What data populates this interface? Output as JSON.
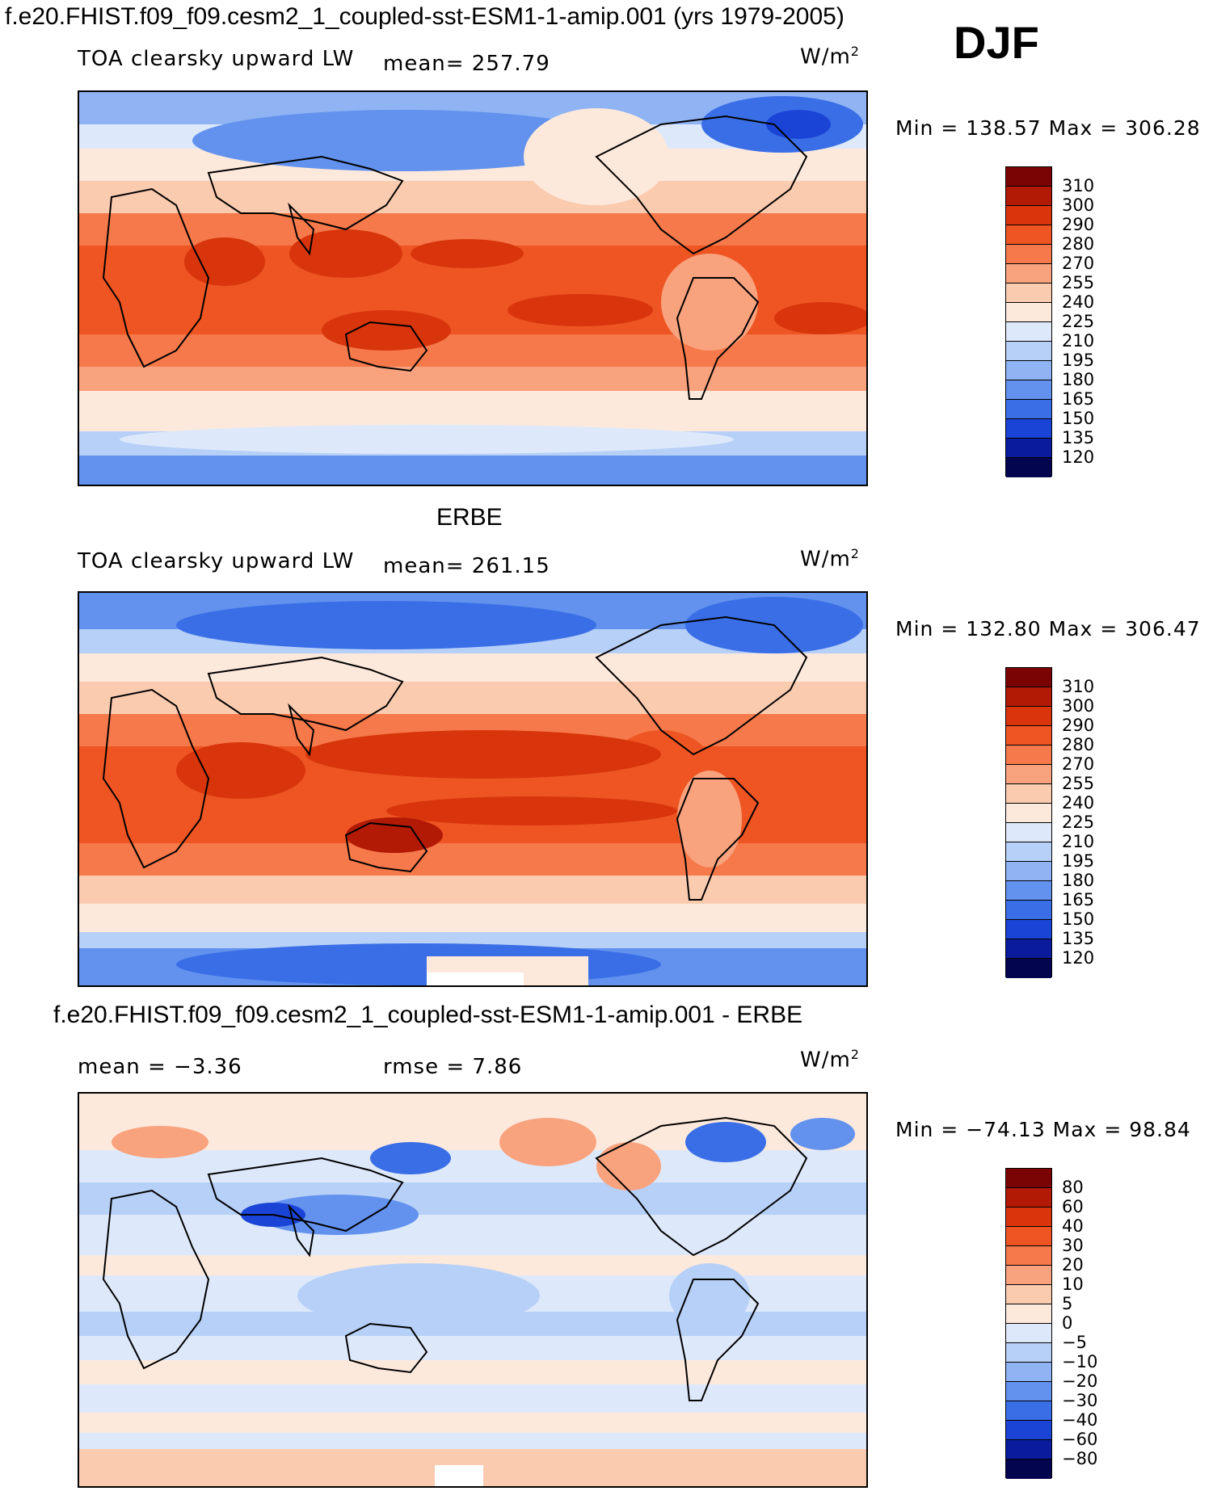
{
  "header": {
    "title": "f.e20.FHIST.f09_f09.cesm2_1_coupled-sst-ESM1-1-amip.001 (yrs 1979-2005)",
    "season": "DJF"
  },
  "panels": [
    {
      "section_title": "",
      "variable": "TOA clearsky upward LW",
      "mean_label": "mean= 257.79",
      "units": "W/m",
      "units_exp": "2",
      "minmax": "Min = 138.57 Max = 306.28",
      "colorbar_labels": [
        "310",
        "300",
        "290",
        "280",
        "270",
        "255",
        "240",
        "225",
        "210",
        "195",
        "180",
        "165",
        "150",
        "135",
        "120"
      ]
    },
    {
      "section_title": "ERBE",
      "variable": "TOA clearsky upward LW",
      "mean_label": "mean= 261.15",
      "units": "W/m",
      "units_exp": "2",
      "minmax": "Min = 132.80 Max = 306.47",
      "colorbar_labels": [
        "310",
        "300",
        "290",
        "280",
        "270",
        "255",
        "240",
        "225",
        "210",
        "195",
        "180",
        "165",
        "150",
        "135",
        "120"
      ]
    },
    {
      "section_title": "f.e20.FHIST.f09_f09.cesm2_1_coupled-sst-ESM1-1-amip.001 - ERBE",
      "mean_label": "mean =   −3.36",
      "rmse_label": "rmse =    7.86",
      "units": "W/m",
      "units_exp": "2",
      "minmax": "Min = −74.13 Max =  98.84",
      "colorbar_labels": [
        "80",
        "60",
        "40",
        "30",
        "20",
        "10",
        "5",
        "0",
        "−5",
        "−10",
        "−20",
        "−30",
        "−40",
        "−60",
        "−80"
      ]
    }
  ],
  "colors": {
    "abs_scale": [
      "#7a0403",
      "#b21a05",
      "#d8350c",
      "#ee5523",
      "#f5794a",
      "#f9a27e",
      "#fbcbb0",
      "#fde9dc",
      "#dde9fb",
      "#b7d0f7",
      "#8fb3f3",
      "#6292ee",
      "#3a6ee6",
      "#1a44d6",
      "#0a1c9c",
      "#03064f"
    ],
    "diff_scale": [
      "#7a0403",
      "#b21a05",
      "#d8350c",
      "#ee5523",
      "#f5794a",
      "#f9a27e",
      "#fbcbb0",
      "#fde9dc",
      "#dde9fb",
      "#b7d0f7",
      "#8fb3f3",
      "#6292ee",
      "#3a6ee6",
      "#1a44d6",
      "#0a1c9c",
      "#03064f"
    ]
  }
}
